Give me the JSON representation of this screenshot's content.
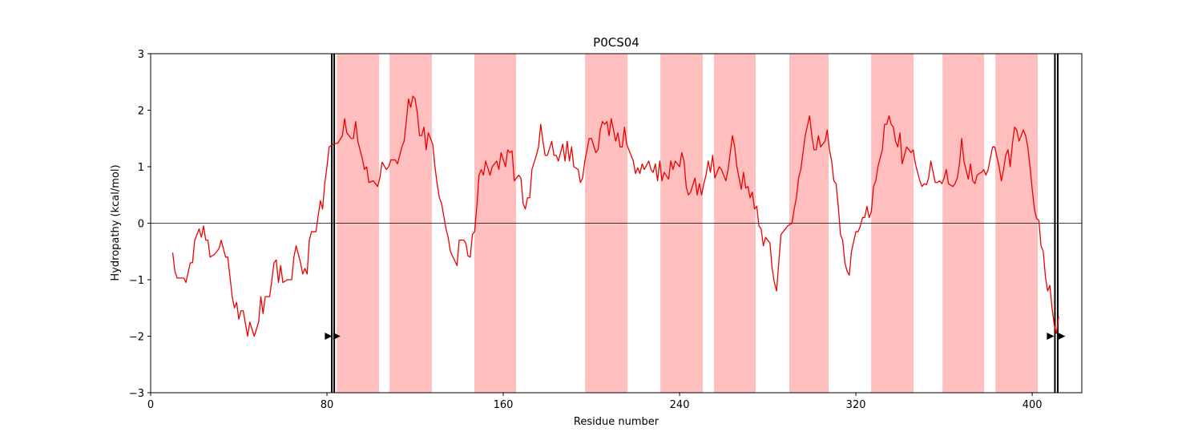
{
  "chart_data": {
    "type": "line",
    "title": "P0CS04",
    "xlabel": "Residue number",
    "ylabel": "Hydropathy (kcal/mol)",
    "xlim": [
      0,
      422.5
    ],
    "ylim": [
      -3,
      3
    ],
    "xticks": [
      0,
      80,
      160,
      240,
      320,
      400
    ],
    "yticks": [
      {
        "value": -3,
        "label": "−3"
      },
      {
        "value": -2,
        "label": "−2"
      },
      {
        "value": -1,
        "label": "−1"
      },
      0,
      1,
      2,
      3
    ],
    "color": "#ee0000",
    "reference_line": 0,
    "shaded_regions": [
      [
        84.4,
        103.6
      ],
      [
        108.4,
        127.6
      ],
      [
        146.9,
        165.8
      ],
      [
        197.1,
        216.4
      ],
      [
        231.3,
        250.5
      ],
      [
        255.6,
        274.5
      ],
      [
        289.8,
        307.6
      ],
      [
        326.9,
        346.2
      ],
      [
        359.3,
        378.2
      ],
      [
        383.3,
        402.5
      ]
    ],
    "shade_color": "#ffbfbf",
    "vlines": [
      82.2,
      83.3,
      410.3,
      411.6
    ],
    "arrows": {
      "x": [
        80.5,
        84.3,
        408.1,
        413.2
      ],
      "y": [
        -2,
        -2,
        -2,
        -2
      ]
    },
    "x": [
      10,
      11,
      12,
      15,
      16,
      18,
      19,
      20,
      22,
      23,
      24,
      25,
      26,
      27,
      29,
      31,
      32,
      34,
      35,
      37,
      38,
      39,
      40,
      41,
      42,
      44,
      45,
      47,
      49,
      50,
      51,
      52,
      54,
      56,
      57,
      58,
      59,
      60,
      62,
      64,
      65,
      66,
      68,
      69,
      70,
      71,
      72,
      73,
      75,
      77,
      78,
      79,
      80,
      81,
      83,
      85,
      87,
      88,
      89,
      91,
      92,
      93,
      94,
      96,
      97,
      98,
      99,
      101,
      103,
      104,
      105,
      107,
      108,
      109,
      111,
      112,
      114,
      115,
      116,
      117,
      118,
      119,
      120,
      121,
      122,
      123,
      124,
      125,
      126,
      128,
      129,
      130,
      131,
      132,
      134,
      135,
      136,
      139,
      140,
      142,
      143,
      144,
      145,
      146,
      147,
      148,
      149,
      150,
      151,
      152,
      154,
      155,
      157,
      158,
      159,
      161,
      162,
      163,
      164,
      165,
      167,
      168,
      169,
      170,
      171,
      172,
      173,
      175,
      176,
      177,
      178,
      179,
      180,
      182,
      183,
      184,
      185,
      187,
      188,
      189,
      190,
      191,
      192,
      194,
      195,
      196,
      197,
      199,
      200,
      202,
      203,
      204,
      205,
      206,
      207,
      208,
      209,
      211,
      212,
      213,
      214,
      215,
      216,
      218,
      219,
      220,
      221,
      222,
      223,
      224,
      226,
      227,
      228,
      229,
      230,
      231,
      232,
      233,
      235,
      236,
      237,
      238,
      240,
      241,
      242,
      243,
      244,
      245,
      247,
      248,
      249,
      250,
      251,
      252,
      253,
      254,
      255,
      256,
      258,
      259,
      260,
      261,
      262,
      264,
      265,
      266,
      268,
      269,
      270,
      271,
      272,
      273,
      274,
      275,
      276,
      277,
      278,
      279,
      281,
      282,
      283,
      284,
      285,
      286,
      288,
      289,
      291,
      292,
      293,
      294,
      295,
      296,
      297,
      299,
      300,
      301,
      302,
      303,
      304,
      306,
      307,
      308,
      309,
      310,
      311,
      312,
      313,
      314,
      315,
      316,
      317,
      318,
      320,
      321,
      322,
      323,
      324,
      325,
      326,
      327,
      328,
      329,
      330,
      332,
      333,
      334,
      335,
      336,
      337,
      338,
      339,
      340,
      341,
      342,
      343,
      345,
      346,
      347,
      348,
      349,
      350,
      351,
      352,
      353,
      354,
      356,
      357,
      358,
      359,
      360,
      361,
      362,
      364,
      365,
      366,
      367,
      368,
      369,
      371,
      372,
      373,
      374,
      375,
      376,
      377,
      378,
      379,
      380,
      381,
      382,
      383,
      385,
      386,
      387,
      388,
      389,
      390,
      391,
      392,
      393,
      394,
      396,
      397,
      398,
      399,
      400,
      401,
      402,
      403,
      404,
      405,
      406,
      407,
      408,
      409,
      410,
      411,
      412
    ],
    "values": [
      -0.52,
      -0.85,
      -0.97,
      -0.97,
      -1.05,
      -0.7,
      -0.7,
      -0.3,
      -0.1,
      -0.25,
      -0.05,
      -0.3,
      -0.3,
      -0.6,
      -0.55,
      -0.45,
      -0.3,
      -0.6,
      -0.6,
      -1.3,
      -1.5,
      -1.4,
      -1.7,
      -1.55,
      -1.55,
      -2.0,
      -1.75,
      -2.0,
      -1.75,
      -1.3,
      -1.6,
      -1.3,
      -1.3,
      -0.7,
      -0.65,
      -1.05,
      -0.75,
      -1.05,
      -1.0,
      -1.0,
      -0.6,
      -0.4,
      -0.7,
      -0.9,
      -0.8,
      -0.9,
      -0.3,
      -0.15,
      -0.15,
      0.4,
      0.25,
      0.7,
      1.0,
      1.35,
      1.4,
      1.42,
      1.55,
      1.85,
      1.6,
      1.5,
      1.5,
      1.8,
      1.45,
      1.15,
      0.95,
      1.0,
      0.72,
      0.75,
      0.65,
      0.8,
      1.08,
      0.95,
      1.0,
      1.12,
      1.12,
      1.05,
      1.35,
      1.45,
      1.8,
      2.2,
      2.05,
      2.25,
      2.2,
      1.95,
      1.55,
      1.55,
      1.7,
      1.3,
      1.6,
      1.4,
      1.0,
      0.7,
      0.45,
      0.35,
      -0.1,
      -0.25,
      -0.5,
      -0.75,
      -0.3,
      -0.3,
      -0.35,
      -0.58,
      -0.6,
      -0.2,
      -0.15,
      0.3,
      0.85,
      0.95,
      0.85,
      1.1,
      0.85,
      1.0,
      1.1,
      0.95,
      1.25,
      1.0,
      1.3,
      1.25,
      1.28,
      0.75,
      0.85,
      0.8,
      0.35,
      0.25,
      0.45,
      0.45,
      0.95,
      1.2,
      1.35,
      1.75,
      1.45,
      1.2,
      1.2,
      1.45,
      1.2,
      1.2,
      1.1,
      1.4,
      1.1,
      1.45,
      1.1,
      1.35,
      1.0,
      0.95,
      0.72,
      0.8,
      1.1,
      1.5,
      1.5,
      1.25,
      1.3,
      1.65,
      1.8,
      1.75,
      1.8,
      1.55,
      1.85,
      1.45,
      1.6,
      1.35,
      1.35,
      1.7,
      1.4,
      1.2,
      1.1,
      0.88,
      0.98,
      0.88,
      1.05,
      0.95,
      1.1,
      0.95,
      0.9,
      1.05,
      0.75,
      1.1,
      0.75,
      0.9,
      0.78,
      1.1,
      0.95,
      1.1,
      1.0,
      1.25,
      1.1,
      0.65,
      0.5,
      0.55,
      0.8,
      0.5,
      0.7,
      0.5,
      0.7,
      0.85,
      1.1,
      0.9,
      1.2,
      0.8,
      1.0,
      0.95,
      0.85,
      0.75,
      0.95,
      1.55,
      1.35,
      1.0,
      0.6,
      0.9,
      0.62,
      0.65,
      0.45,
      0.55,
      0.25,
      0.3,
      -0.05,
      -0.1,
      -0.4,
      -0.25,
      -0.35,
      -0.8,
      -1.05,
      -1.2,
      -0.7,
      -0.2,
      -0.1,
      -0.05,
      0.0,
      0.25,
      0.45,
      0.8,
      0.95,
      1.25,
      1.55,
      1.9,
      1.55,
      1.3,
      1.3,
      1.55,
      1.35,
      1.45,
      1.65,
      1.3,
      1.1,
      0.75,
      0.7,
      0.3,
      -0.2,
      -0.3,
      -0.7,
      -0.85,
      -0.92,
      -0.5,
      -0.15,
      -0.15,
      -0.05,
      0.1,
      0.1,
      0.3,
      0.1,
      0.2,
      0.65,
      0.75,
      1.0,
      1.3,
      1.75,
      1.75,
      1.9,
      1.75,
      1.7,
      1.45,
      1.35,
      1.6,
      1.05,
      1.2,
      1.35,
      1.25,
      1.3,
      1.05,
      0.9,
      0.75,
      0.65,
      0.7,
      0.68,
      0.8,
      1.1,
      0.72,
      0.72,
      0.75,
      0.7,
      0.8,
      0.95,
      0.7,
      0.65,
      0.7,
      0.8,
      1.05,
      1.5,
      1.1,
      0.78,
      1.05,
      0.75,
      0.7,
      0.85,
      0.88,
      0.9,
      0.95,
      0.85,
      0.95,
      1.15,
      1.35,
      1.35,
      1.0,
      0.75,
      0.95,
      1.2,
      1.3,
      1.0,
      1.4,
      1.7,
      1.65,
      1.45,
      1.65,
      1.55,
      1.35,
      1.0,
      0.6,
      0.25,
      0.08,
      0.05,
      -0.4,
      -0.5,
      -0.95,
      -1.2,
      -1.1,
      -1.5,
      -1.8,
      -1.95,
      -1.65
    ]
  }
}
